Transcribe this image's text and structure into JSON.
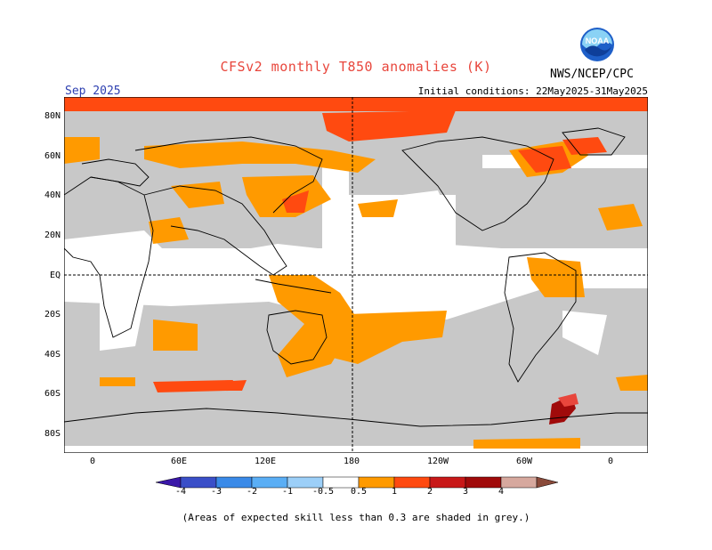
{
  "header": {
    "title": "CFSv2 monthly T850 anomalies (K)",
    "month": "Sep 2025",
    "initial_conditions": "Initial conditions: 22May2025-31May2025",
    "agency": "NWS/NCEP/CPC",
    "logo_text": "NOAA"
  },
  "map": {
    "lat_labels": [
      "80N",
      "60N",
      "40N",
      "20N",
      "EQ",
      "20S",
      "40S",
      "60S",
      "80S"
    ],
    "lon_labels": [
      "0",
      "60E",
      "120E",
      "180",
      "120W",
      "60W",
      "0"
    ],
    "grey_color": "#c8c8c8",
    "land_color": "#000000"
  },
  "colorbar": {
    "tick_labels": [
      "-4",
      "-3",
      "-2",
      "-1",
      "-0.5",
      "0.5",
      "1",
      "2",
      "3",
      "4"
    ],
    "colors": [
      "#3a17a8",
      "#3a4fc8",
      "#3a8ae8",
      "#5aaef5",
      "#9ccff8",
      "#ffffff",
      "#ff9a00",
      "#ff4a10",
      "#c81818",
      "#a00a0a",
      "#d6a89e",
      "#8a4a3a"
    ]
  },
  "footnote": "(Areas of expected skill less than 0.3 are shaded in grey.)"
}
